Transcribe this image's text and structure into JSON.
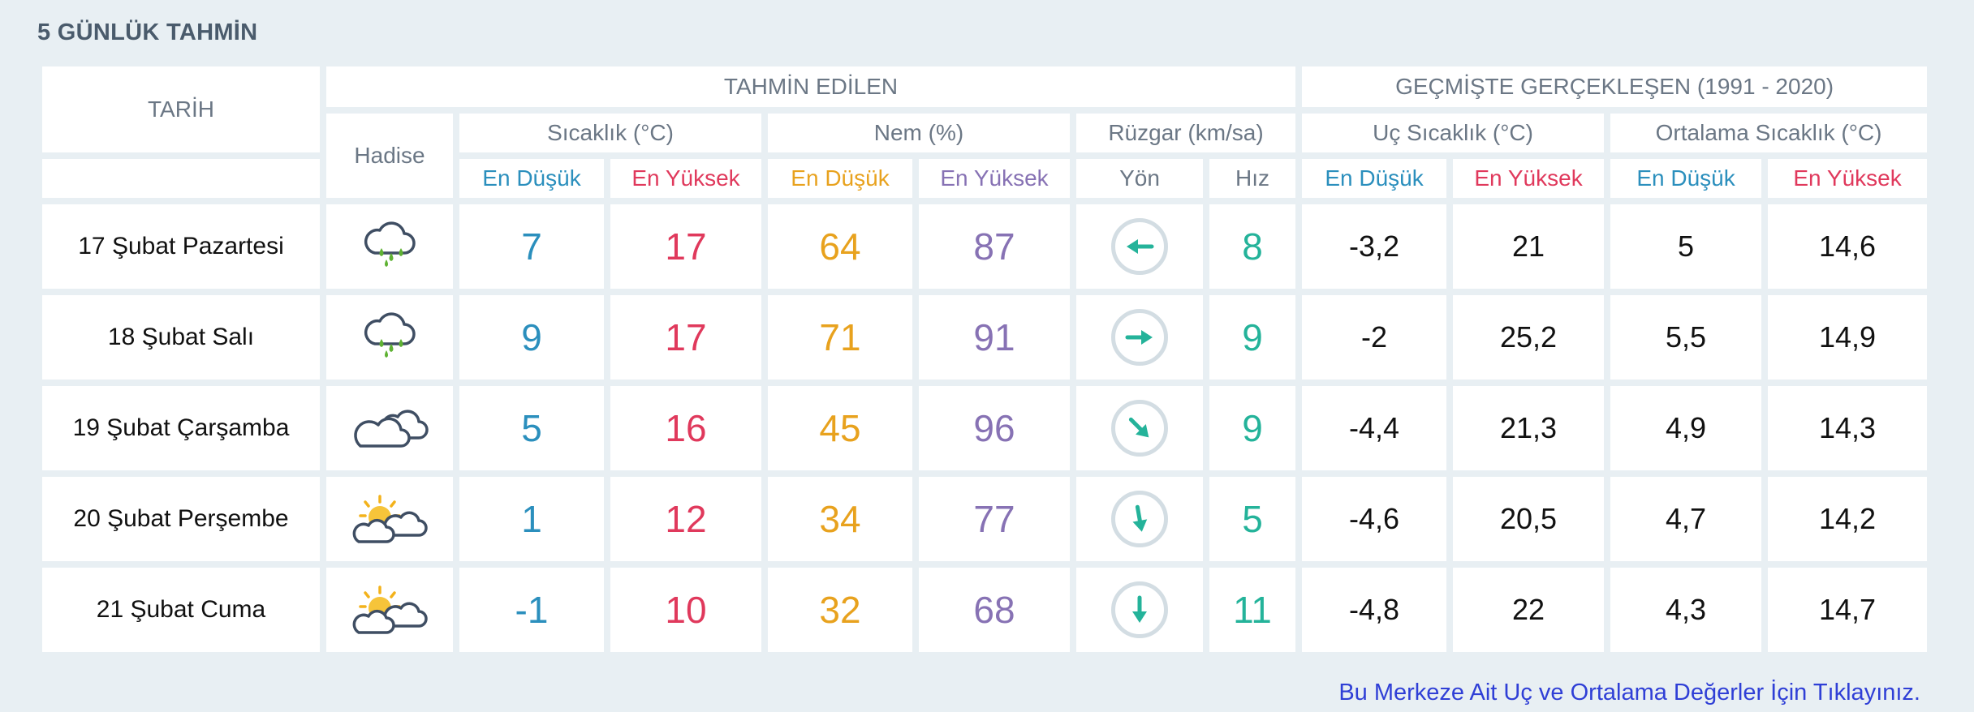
{
  "page_title": "5 GÜNLÜK TAHMİN",
  "headers": {
    "tarih": "TARİH",
    "tahmin_edilen": "TAHMİN EDİLEN",
    "gecmiste": "GEÇMİŞTE GERÇEKLEŞEN (1991 - 2020)",
    "hadise": "Hadise",
    "sicaklik": "Sıcaklık (°C)",
    "nem": "Nem (%)",
    "ruzgar": "Rüzgar (km/sa)",
    "uc_sicaklik": "Uç Sıcaklık (°C)",
    "ortalama_sicaklik": "Ortalama Sıcaklık (°C)",
    "en_dusuk": "En Düşük",
    "en_yuksek": "En Yüksek",
    "yon": "Yön",
    "hiz": "Hız"
  },
  "rows": [
    {
      "date": "17 Şubat Pazartesi",
      "icon": "rain-cloud-icon",
      "temp_min": "7",
      "temp_max": "17",
      "hum_min": "64",
      "hum_max": "87",
      "wind_dir_deg": 270,
      "wind_speed": "8",
      "uc_min": "-3,2",
      "uc_max": "21",
      "ort_min": "5",
      "ort_max": "14,6"
    },
    {
      "date": "18 Şubat Salı",
      "icon": "rain-cloud-icon",
      "temp_min": "9",
      "temp_max": "17",
      "hum_min": "71",
      "hum_max": "91",
      "wind_dir_deg": 90,
      "wind_speed": "9",
      "uc_min": "-2",
      "uc_max": "25,2",
      "ort_min": "5,5",
      "ort_max": "14,9"
    },
    {
      "date": "19 Şubat Çarşamba",
      "icon": "cloudy-icon",
      "temp_min": "5",
      "temp_max": "16",
      "hum_min": "45",
      "hum_max": "96",
      "wind_dir_deg": 135,
      "wind_speed": "9",
      "uc_min": "-4,4",
      "uc_max": "21,3",
      "ort_min": "4,9",
      "ort_max": "14,3"
    },
    {
      "date": "20 Şubat Perşembe",
      "icon": "partly-cloudy-icon",
      "temp_min": "1",
      "temp_max": "12",
      "hum_min": "34",
      "hum_max": "77",
      "wind_dir_deg": 170,
      "wind_speed": "5",
      "uc_min": "-4,6",
      "uc_max": "20,5",
      "ort_min": "4,7",
      "ort_max": "14,2"
    },
    {
      "date": "21 Şubat Cuma",
      "icon": "partly-cloudy-icon",
      "temp_min": "-1",
      "temp_max": "10",
      "hum_min": "32",
      "hum_max": "68",
      "wind_dir_deg": 180,
      "wind_speed": "11",
      "uc_min": "-4,8",
      "uc_max": "22",
      "ort_min": "4,3",
      "ort_max": "14,7"
    }
  ],
  "footer_link": "Bu Merkeze Ait Uç ve Ortalama Değerler İçin Tıklayınız.",
  "colors": {
    "min": "#2b8fbd",
    "max": "#e0395c",
    "hum_min": "#e8a21e",
    "hum_max": "#8772b4",
    "wind": "#24b39a"
  }
}
